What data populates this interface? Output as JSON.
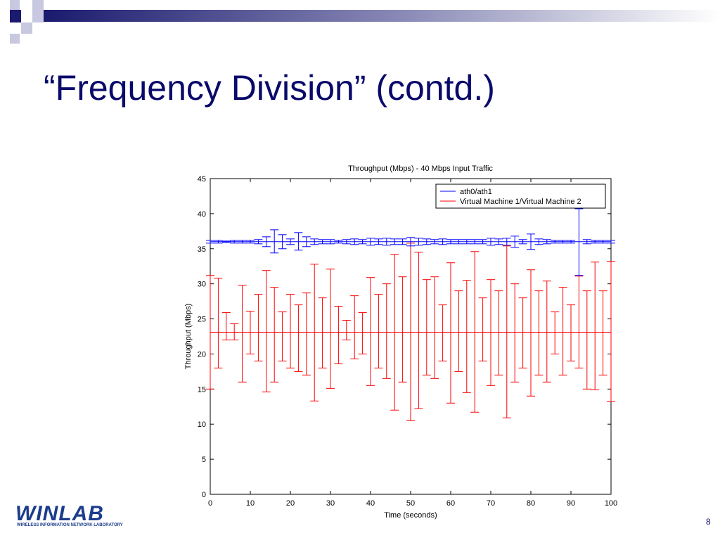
{
  "slide": {
    "title": "“Frequency Division” (contd.)",
    "page_number": "8",
    "logo_text": "WINLAB",
    "logo_subtext": "WIRELESS INFORMATION NETWORK LABORATORY",
    "colors": {
      "title": "#0a0a6b",
      "accent_dark": "#1a1a6e",
      "accent_light": "#c8c8e0"
    }
  },
  "chart_data": {
    "type": "line",
    "title": "Throughput (Mbps)  - 40 Mbps Input Traffic",
    "xlabel": "Time (seconds)",
    "ylabel": "Throughput (Mbps)",
    "xlim": [
      0,
      100
    ],
    "ylim": [
      0,
      45
    ],
    "x_ticks": [
      "0",
      "10",
      "20",
      "30",
      "40",
      "50",
      "60",
      "70",
      "80",
      "90",
      "100"
    ],
    "y_ticks": [
      "0",
      "5",
      "10",
      "15",
      "20",
      "25",
      "30",
      "35",
      "40",
      "45"
    ],
    "grid": false,
    "legend_position": "top-right",
    "series": [
      {
        "name": "ath0/ath1",
        "color": "#0000ff",
        "mean": 36,
        "x": [
          0,
          2,
          4,
          6,
          8,
          10,
          12,
          14,
          16,
          18,
          20,
          22,
          24,
          26,
          28,
          30,
          32,
          34,
          36,
          38,
          40,
          42,
          44,
          46,
          48,
          50,
          52,
          54,
          56,
          58,
          60,
          62,
          64,
          66,
          68,
          70,
          72,
          74,
          76,
          78,
          80,
          82,
          84,
          86,
          88,
          90,
          92,
          94,
          96,
          98,
          100
        ],
        "lower": [
          35.8,
          35.8,
          35.9,
          35.8,
          35.8,
          35.8,
          35.7,
          35.3,
          34.4,
          35.0,
          35.6,
          34.8,
          35.3,
          35.6,
          35.7,
          35.7,
          35.8,
          35.7,
          35.6,
          35.7,
          35.5,
          35.6,
          35.5,
          35.6,
          35.6,
          35.4,
          35.5,
          35.6,
          35.7,
          35.6,
          35.7,
          35.7,
          35.7,
          35.7,
          35.7,
          35.5,
          35.6,
          35.5,
          35.2,
          35.7,
          34.9,
          35.6,
          35.7,
          35.8,
          35.8,
          35.8,
          31.2,
          35.7,
          35.8,
          35.8,
          35.8
        ],
        "upper": [
          36.2,
          36.2,
          36.1,
          36.2,
          36.2,
          36.2,
          36.3,
          36.7,
          37.7,
          37.0,
          36.4,
          37.3,
          36.7,
          36.4,
          36.3,
          36.3,
          36.2,
          36.3,
          36.4,
          36.3,
          36.5,
          36.4,
          36.5,
          36.4,
          36.4,
          36.6,
          36.5,
          36.4,
          36.3,
          36.4,
          36.3,
          36.3,
          36.3,
          36.3,
          36.3,
          36.5,
          36.4,
          36.5,
          36.8,
          36.3,
          37.1,
          36.4,
          36.3,
          36.2,
          36.2,
          36.2,
          40.7,
          36.3,
          36.2,
          36.2,
          36.2
        ]
      },
      {
        "name": "Virtual Machine 1/Virtual Machine 2",
        "color": "#ff0000",
        "mean": 23.1,
        "x": [
          0,
          2,
          4,
          6,
          8,
          10,
          12,
          14,
          16,
          18,
          20,
          22,
          24,
          26,
          28,
          30,
          32,
          34,
          36,
          38,
          40,
          42,
          44,
          46,
          48,
          50,
          52,
          54,
          56,
          58,
          60,
          62,
          64,
          66,
          68,
          70,
          72,
          74,
          76,
          78,
          80,
          82,
          84,
          86,
          88,
          90,
          92,
          94,
          96,
          98,
          100
        ],
        "lower": [
          15,
          18,
          22,
          22,
          16,
          20,
          19,
          14.6,
          16,
          19,
          18,
          17.5,
          17,
          13.3,
          18,
          15.1,
          18.6,
          22,
          19.3,
          20,
          15.5,
          18,
          16.5,
          12,
          16,
          10.5,
          12.2,
          17,
          16.5,
          19,
          13,
          17.5,
          14.5,
          11.7,
          19,
          15.5,
          17,
          10.9,
          16,
          18,
          14,
          17,
          16,
          20,
          17,
          19,
          18,
          15,
          14.9,
          17,
          13.2
        ],
        "upper": [
          31.2,
          30.8,
          25.9,
          24.3,
          29.8,
          26.1,
          28.5,
          31.9,
          29.5,
          26,
          28.5,
          27,
          28.7,
          32.8,
          28,
          32.1,
          26.8,
          24.8,
          28.3,
          25.9,
          30.9,
          28.5,
          30,
          34.2,
          31,
          35.8,
          34.5,
          30.6,
          31,
          27,
          33,
          29,
          30.5,
          34.6,
          28,
          30.6,
          29,
          35.4,
          30,
          28,
          32,
          29,
          30.4,
          26,
          29.5,
          27,
          31.1,
          29,
          33.1,
          29,
          33.2
        ]
      }
    ]
  }
}
